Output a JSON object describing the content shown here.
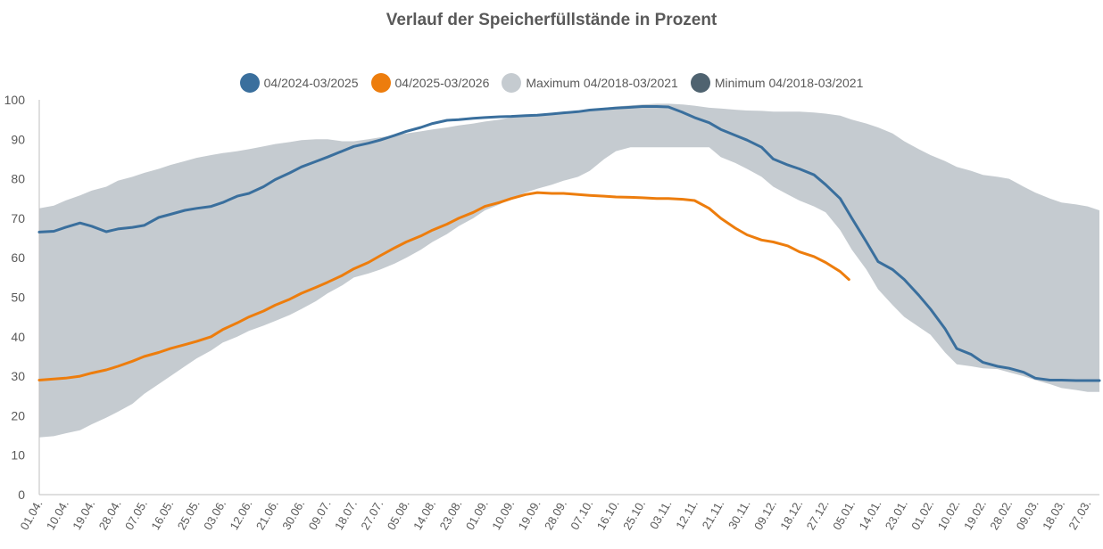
{
  "chart_data": {
    "type": "line",
    "title": "Verlauf der Speicherfüllstände in Prozent",
    "xlabel": "",
    "ylabel": "",
    "ylim": [
      0,
      100
    ],
    "yticks": [
      0,
      10,
      20,
      30,
      40,
      50,
      60,
      70,
      80,
      90,
      100
    ],
    "grid": false,
    "legend_position": "top",
    "x_tick_labels": [
      "01.04.",
      "10.04.",
      "19.04.",
      "28.04.",
      "07.05.",
      "16.05.",
      "25.05.",
      "03.06.",
      "12.06.",
      "21.06.",
      "30.06.",
      "09.07.",
      "18.07.",
      "27.07.",
      "05.08.",
      "14.08.",
      "23.08.",
      "01.09.",
      "10.09.",
      "19.09.",
      "28.09.",
      "07.10.",
      "16.10.",
      "25.10.",
      "03.11.",
      "12.11.",
      "21.11.",
      "30.11.",
      "09.12.",
      "18.12.",
      "27.12.",
      "05.01.",
      "14.01.",
      "23.01.",
      "01.02.",
      "10.02.",
      "19.02.",
      "28.02.",
      "09.03.",
      "18.03.",
      "27.03."
    ],
    "x_tick_day_index": [
      0,
      9,
      18,
      27,
      36,
      45,
      54,
      63,
      72,
      81,
      90,
      99,
      108,
      117,
      126,
      135,
      144,
      153,
      162,
      171,
      180,
      189,
      198,
      207,
      216,
      225,
      234,
      243,
      252,
      261,
      270,
      279,
      288,
      297,
      306,
      315,
      324,
      333,
      342,
      351,
      360
    ],
    "day_count": 365,
    "series": [
      {
        "name": "04/2024-03/2025",
        "color": "#3a6f9d",
        "day_index": [
          0,
          5,
          9,
          14,
          18,
          23,
          27,
          32,
          36,
          41,
          45,
          50,
          54,
          59,
          63,
          68,
          72,
          77,
          81,
          86,
          90,
          95,
          99,
          104,
          108,
          113,
          117,
          122,
          126,
          131,
          135,
          140,
          144,
          149,
          153,
          158,
          162,
          167,
          171,
          176,
          180,
          185,
          189,
          194,
          198,
          203,
          207,
          212,
          216,
          221,
          225,
          230,
          234,
          239,
          243,
          248,
          252,
          257,
          261,
          266,
          270,
          275,
          279,
          284,
          288,
          293,
          297,
          302,
          306,
          311,
          315,
          320,
          324,
          329,
          333,
          338,
          342,
          347,
          351,
          356,
          360,
          364
        ],
        "values": [
          66.5,
          66.7,
          67.7,
          68.8,
          68.0,
          66.6,
          67.3,
          67.7,
          68.2,
          70.2,
          71.0,
          72.0,
          72.5,
          73.0,
          74.0,
          75.6,
          76.3,
          78.0,
          79.8,
          81.5,
          83.0,
          84.4,
          85.5,
          87.0,
          88.2,
          89.0,
          89.8,
          91.0,
          92.0,
          93.0,
          94.0,
          94.8,
          95.0,
          95.3,
          95.5,
          95.7,
          95.8,
          96.0,
          96.1,
          96.4,
          96.7,
          97.0,
          97.4,
          97.7,
          97.9,
          98.1,
          98.3,
          98.3,
          98.2,
          96.8,
          95.5,
          94.2,
          92.5,
          91.0,
          89.8,
          88.0,
          85.0,
          83.5,
          82.5,
          81.0,
          78.5,
          75.0,
          70.0,
          64.0,
          59.0,
          57.0,
          54.5,
          50.5,
          47.0,
          42.0,
          37.0,
          35.5,
          33.5,
          32.5,
          32.0,
          31.0,
          29.5,
          29.0,
          29.0,
          28.9,
          28.9,
          28.9
        ]
      },
      {
        "name": "04/2025-03/2026",
        "color": "#ed7d0d",
        "day_index": [
          0,
          5,
          9,
          14,
          18,
          23,
          27,
          32,
          36,
          41,
          45,
          50,
          54,
          59,
          63,
          68,
          72,
          77,
          81,
          86,
          90,
          95,
          99,
          104,
          108,
          113,
          117,
          122,
          126,
          131,
          135,
          140,
          144,
          149,
          153,
          158,
          162,
          167,
          171,
          176,
          180,
          185,
          189,
          194,
          198,
          203,
          207,
          212,
          216,
          221,
          225,
          230,
          234,
          239,
          243,
          248,
          252,
          257,
          261,
          266,
          270,
          275,
          278
        ],
        "values": [
          29.0,
          29.3,
          29.5,
          30.0,
          30.8,
          31.6,
          32.5,
          33.8,
          35.0,
          36.0,
          37.0,
          38.0,
          38.8,
          40.0,
          41.8,
          43.5,
          45.0,
          46.5,
          48.0,
          49.5,
          51.0,
          52.5,
          53.8,
          55.5,
          57.2,
          58.8,
          60.5,
          62.5,
          64.0,
          65.5,
          67.0,
          68.5,
          70.0,
          71.5,
          73.0,
          74.0,
          75.0,
          76.0,
          76.5,
          76.3,
          76.3,
          76.0,
          75.8,
          75.6,
          75.4,
          75.3,
          75.2,
          75.0,
          75.0,
          74.8,
          74.5,
          72.5,
          70.0,
          67.5,
          65.8,
          64.5,
          64.0,
          63.0,
          61.5,
          60.3,
          58.8,
          56.5,
          54.5
        ]
      },
      {
        "name": "Maximum 04/2018-03/2021",
        "color": "#c5cbd0",
        "day_index": [
          0,
          5,
          9,
          14,
          18,
          23,
          27,
          32,
          36,
          41,
          45,
          50,
          54,
          59,
          63,
          68,
          72,
          77,
          81,
          86,
          90,
          95,
          99,
          104,
          108,
          113,
          117,
          122,
          126,
          131,
          135,
          140,
          144,
          149,
          153,
          158,
          162,
          167,
          171,
          176,
          180,
          185,
          189,
          194,
          198,
          203,
          207,
          212,
          216,
          221,
          225,
          230,
          234,
          239,
          243,
          248,
          252,
          257,
          261,
          266,
          270,
          275,
          279,
          284,
          288,
          293,
          297,
          302,
          306,
          311,
          315,
          320,
          324,
          329,
          333,
          338,
          342,
          347,
          351,
          356,
          360,
          364
        ],
        "values": [
          72.5,
          73.2,
          74.5,
          75.8,
          77.0,
          78.0,
          79.5,
          80.5,
          81.5,
          82.5,
          83.5,
          84.5,
          85.3,
          86.0,
          86.5,
          87.0,
          87.5,
          88.2,
          88.8,
          89.3,
          89.8,
          90.0,
          90.0,
          89.5,
          89.5,
          90.0,
          90.5,
          91.0,
          91.5,
          92.0,
          92.5,
          93.0,
          93.5,
          94.0,
          94.5,
          95.0,
          95.5,
          96.0,
          96.3,
          96.6,
          97.0,
          97.3,
          97.6,
          98.0,
          98.3,
          98.6,
          98.8,
          99.0,
          99.0,
          98.8,
          98.5,
          98.0,
          97.8,
          97.5,
          97.3,
          97.2,
          97.0,
          97.0,
          97.0,
          96.8,
          96.5,
          96.0,
          95.0,
          94.0,
          93.0,
          91.5,
          89.5,
          87.5,
          86.0,
          84.5,
          83.0,
          82.0,
          81.0,
          80.5,
          80.0,
          78.0,
          76.5,
          75.0,
          74.0,
          73.5,
          73.0,
          72.0
        ]
      },
      {
        "name": "Minimum 04/2018-03/2021",
        "color": "#4f6370",
        "day_index": [
          0,
          5,
          9,
          14,
          18,
          23,
          27,
          32,
          36,
          41,
          45,
          50,
          54,
          59,
          63,
          68,
          72,
          77,
          81,
          86,
          90,
          95,
          99,
          104,
          108,
          113,
          117,
          122,
          126,
          131,
          135,
          140,
          144,
          149,
          153,
          158,
          162,
          167,
          171,
          176,
          180,
          185,
          189,
          194,
          198,
          203,
          207,
          212,
          216,
          221,
          225,
          230,
          234,
          239,
          243,
          248,
          252,
          257,
          261,
          266,
          270,
          275,
          279,
          284,
          288,
          293,
          297,
          302,
          306,
          311,
          315,
          320,
          324,
          329,
          333,
          338,
          342,
          347,
          351,
          356,
          360,
          364
        ],
        "values": [
          14.5,
          14.8,
          15.5,
          16.3,
          17.8,
          19.5,
          21.0,
          23.0,
          25.5,
          28.0,
          30.0,
          32.5,
          34.5,
          36.5,
          38.5,
          40.0,
          41.5,
          42.8,
          44.0,
          45.5,
          47.0,
          49.0,
          51.0,
          53.0,
          55.0,
          56.0,
          57.0,
          58.5,
          60.0,
          62.0,
          64.0,
          66.0,
          68.0,
          70.0,
          72.0,
          73.5,
          75.0,
          76.5,
          77.5,
          78.5,
          79.5,
          80.5,
          82.0,
          85.0,
          87.0,
          88.0,
          88.0,
          88.0,
          88.0,
          88.0,
          88.0,
          88.0,
          85.5,
          84.0,
          82.5,
          80.5,
          78.0,
          76.0,
          74.5,
          73.0,
          71.5,
          67.0,
          62.0,
          57.0,
          52.0,
          48.0,
          45.0,
          42.5,
          40.5,
          36.0,
          33.0,
          32.5,
          32.0,
          31.8,
          31.0,
          30.0,
          29.0,
          28.0,
          27.0,
          26.5,
          26.0,
          26.0
        ]
      }
    ]
  }
}
